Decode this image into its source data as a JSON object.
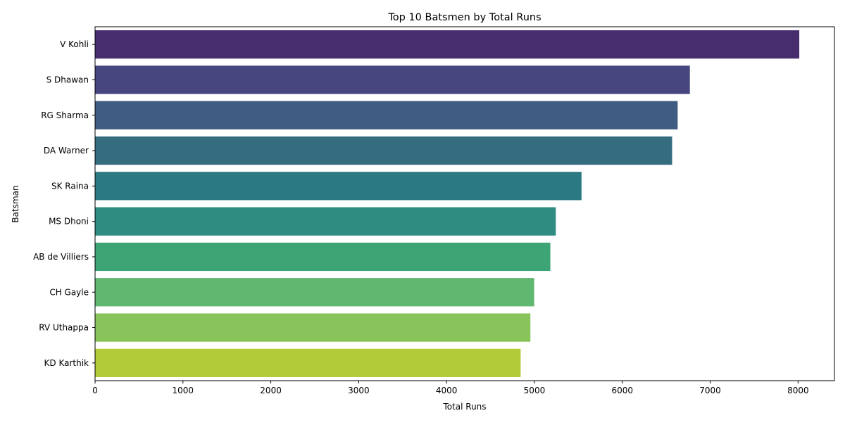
{
  "chart_data": {
    "type": "bar",
    "orientation": "horizontal",
    "title": "Top 10 Batsmen by Total Runs",
    "xlabel": "Total Runs",
    "ylabel": "Batsman",
    "categories": [
      "V Kohli",
      "S Dhawan",
      "RG Sharma",
      "DA Warner",
      "SK Raina",
      "MS Dhoni",
      "AB de Villiers",
      "CH Gayle",
      "RV Uthappa",
      "KD Karthik"
    ],
    "values": [
      8014,
      6769,
      6630,
      6567,
      5536,
      5243,
      5181,
      4997,
      4954,
      4843
    ],
    "colors": [
      "#472c6e",
      "#48467e",
      "#405c82",
      "#356c80",
      "#2b7a81",
      "#2e8c80",
      "#3da476",
      "#60b76f",
      "#88c45a",
      "#b2cb38"
    ],
    "xlim": [
      0,
      8414
    ],
    "xticks": [
      0,
      1000,
      2000,
      3000,
      4000,
      5000,
      6000,
      7000,
      8000
    ],
    "grid": false,
    "legend": "none"
  }
}
